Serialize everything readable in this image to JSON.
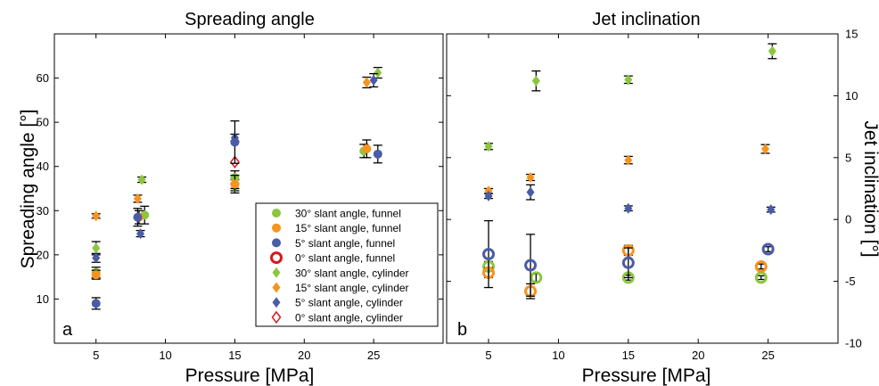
{
  "chart_data": [
    {
      "type": "scatter",
      "title": "Spreading angle",
      "xlabel": "Pressure [MPa]",
      "ylabel": "Spreading angle [°]",
      "panel_label": "a",
      "xlim": [
        2,
        30
      ],
      "ylim": [
        0,
        70
      ],
      "xticks": [
        5,
        10,
        15,
        20,
        25
      ],
      "yticks": [
        10,
        20,
        30,
        40,
        50,
        60
      ],
      "legend": {
        "position": "bottom-right",
        "entries": [
          {
            "label": "30° slant angle, funnel",
            "marker": "dot",
            "color": "#8cc63f"
          },
          {
            "label": "15° slant angle, funnel",
            "marker": "dot",
            "color": "#f7931e"
          },
          {
            "label": "5° slant angle, funnel",
            "marker": "dot",
            "color": "#4a5ca8"
          },
          {
            "label": "0° slant angle, funnel",
            "marker": "ring",
            "color": "#d7191c"
          },
          {
            "label": "30° slant angle, cylinder",
            "marker": "diamond",
            "color": "#8cc63f"
          },
          {
            "label": "15° slant angle, cylinder",
            "marker": "diamond",
            "color": "#f7931e"
          },
          {
            "label": "5° slant angle, cylinder",
            "marker": "diamond",
            "color": "#4a5ca8"
          },
          {
            "label": "0° slant angle, cylinder",
            "marker": "hollow-diamond",
            "color": "#d7191c"
          }
        ]
      },
      "series": [
        {
          "marker": "diamond",
          "color": "#8cc63f",
          "points": [
            {
              "x": 5,
              "y": 21.5,
              "err": 1.5
            },
            {
              "x": 8.3,
              "y": 37,
              "err": 0.6
            },
            {
              "x": 15,
              "y": 35.3,
              "err": 0.8
            },
            {
              "x": 25.3,
              "y": 61.2,
              "err": 1.2
            }
          ]
        },
        {
          "marker": "diamond",
          "color": "#f7931e",
          "points": [
            {
              "x": 5,
              "y": 28.8,
              "err": 0.5
            },
            {
              "x": 8,
              "y": 32.7,
              "err": 0.8
            },
            {
              "x": 15,
              "y": 36,
              "err": 1
            },
            {
              "x": 24.5,
              "y": 59,
              "err": 1.2
            }
          ]
        },
        {
          "marker": "diamond",
          "color": "#4a5ca8",
          "points": [
            {
              "x": 5,
              "y": 19.3,
              "err": 1
            },
            {
              "x": 8.2,
              "y": 24.8,
              "err": 0.7
            },
            {
              "x": 15,
              "y": 46.5,
              "err": 0.8
            },
            {
              "x": 25,
              "y": 59.5,
              "err": 1.5
            }
          ]
        },
        {
          "marker": "hollow-diamond",
          "color": "#d7191c",
          "points": [
            {
              "x": 15,
              "y": 41,
              "err": 0
            }
          ]
        },
        {
          "marker": "dot",
          "color": "#8cc63f",
          "points": [
            {
              "x": 5,
              "y": 16,
              "err": 1.2
            },
            {
              "x": 8.5,
              "y": 29,
              "err": 2
            },
            {
              "x": 15,
              "y": 37.5,
              "err": 1.5
            },
            {
              "x": 24.3,
              "y": 43.5,
              "err": 1.5
            }
          ]
        },
        {
          "marker": "dot",
          "color": "#f7931e",
          "points": [
            {
              "x": 5,
              "y": 15.5,
              "err": 1
            },
            {
              "x": 8.1,
              "y": 28.5,
              "err": 1.5
            },
            {
              "x": 15,
              "y": 36,
              "err": 2
            },
            {
              "x": 24.5,
              "y": 44,
              "err": 2
            }
          ]
        },
        {
          "marker": "dot",
          "color": "#4a5ca8",
          "points": [
            {
              "x": 5,
              "y": 9,
              "err": 1.3
            },
            {
              "x": 8,
              "y": 28.5,
              "err": 2
            },
            {
              "x": 15,
              "y": 45.5,
              "err": 4.8
            },
            {
              "x": 25.3,
              "y": 42.8,
              "err": 2
            }
          ]
        }
      ]
    },
    {
      "type": "scatter",
      "title": "Jet inclination",
      "xlabel": "Pressure [MPa]",
      "ylabel": "Jet inclination [°]",
      "panel_label": "b",
      "xlim": [
        2,
        30
      ],
      "ylim": [
        -10,
        15
      ],
      "xticks": [
        5,
        10,
        15,
        20,
        25
      ],
      "yticks": [
        -10,
        -5,
        0,
        5,
        10,
        15
      ],
      "series": [
        {
          "marker": "diamond",
          "color": "#8cc63f",
          "points": [
            {
              "x": 5,
              "y": 5.9,
              "err": 0.25
            },
            {
              "x": 8.4,
              "y": 11.2,
              "err": 0.8
            },
            {
              "x": 15,
              "y": 11.3,
              "err": 0.3
            },
            {
              "x": 25.3,
              "y": 13.6,
              "err": 0.6
            }
          ]
        },
        {
          "marker": "diamond",
          "color": "#f7931e",
          "points": [
            {
              "x": 5,
              "y": 2.3,
              "err": 0.2
            },
            {
              "x": 8,
              "y": 3.4,
              "err": 0.25
            },
            {
              "x": 15,
              "y": 4.8,
              "err": 0.3
            },
            {
              "x": 24.8,
              "y": 5.7,
              "err": 0.35
            }
          ]
        },
        {
          "marker": "diamond",
          "color": "#4a5ca8",
          "points": [
            {
              "x": 5,
              "y": 1.9,
              "err": 0.2
            },
            {
              "x": 8,
              "y": 2.2,
              "err": 0.6
            },
            {
              "x": 15,
              "y": 0.9,
              "err": 0.2
            },
            {
              "x": 25.2,
              "y": 0.8,
              "err": 0.2
            }
          ]
        },
        {
          "marker": "ring",
          "color": "#8cc63f",
          "points": [
            {
              "x": 5,
              "y": -3.8,
              "err": 0.4
            },
            {
              "x": 8.4,
              "y": -4.7,
              "err": 0.3
            },
            {
              "x": 15,
              "y": -4.7,
              "err": 0.2
            },
            {
              "x": 24.5,
              "y": -4.7,
              "err": 0.15
            }
          ]
        },
        {
          "marker": "ring",
          "color": "#f7931e",
          "points": [
            {
              "x": 5,
              "y": -4.3,
              "err": 0.4
            },
            {
              "x": 8,
              "y": -5.8,
              "err": 0.6
            },
            {
              "x": 15,
              "y": -2.5,
              "err": 0.4
            },
            {
              "x": 24.5,
              "y": -3.8,
              "err": 0.2
            }
          ]
        },
        {
          "marker": "ring",
          "color": "#4a5ca8",
          "points": [
            {
              "x": 5,
              "y": -2.8,
              "err": 2.7
            },
            {
              "x": 8,
              "y": -3.7,
              "err": 2.5
            },
            {
              "x": 15,
              "y": -3.5,
              "err": 1.2
            },
            {
              "x": 25,
              "y": -2.4,
              "err": 0.2
            }
          ]
        }
      ]
    }
  ]
}
